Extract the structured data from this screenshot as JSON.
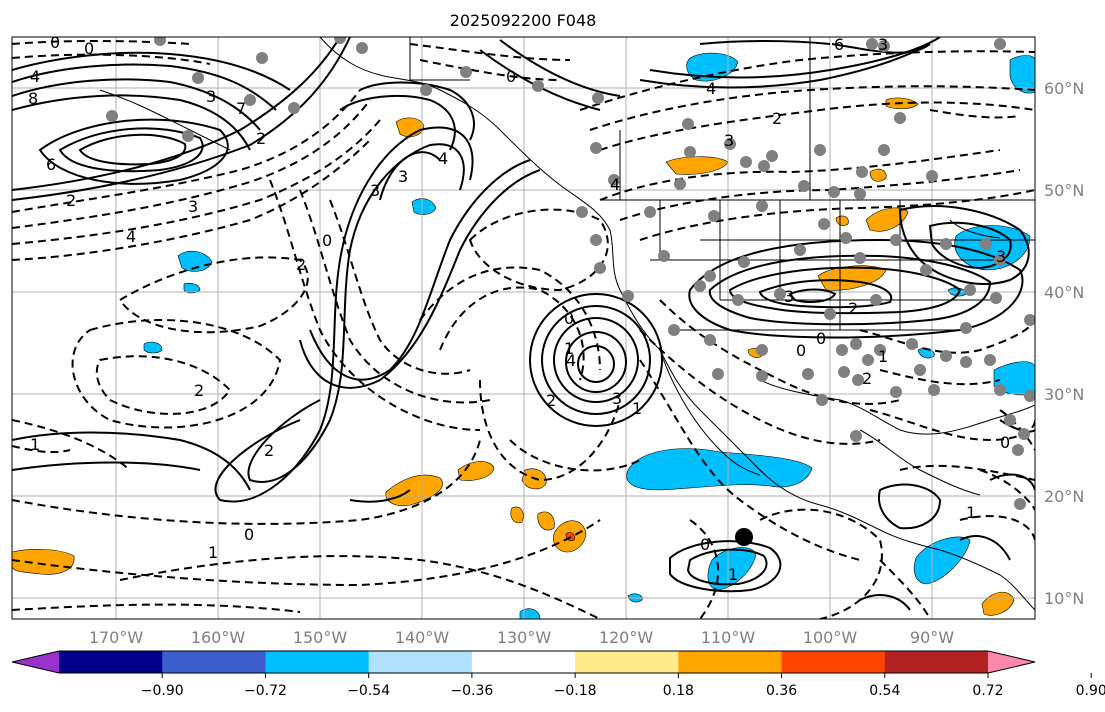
{
  "title": "2025092200 F048",
  "lat_labels": [
    "60°N",
    "50°N",
    "40°N",
    "30°N",
    "20°N",
    "10°N"
  ],
  "lon_labels": [
    "170°W",
    "160°W",
    "150°W",
    "140°W",
    "130°W",
    "120°W",
    "110°W",
    "100°W",
    "90°W"
  ],
  "colorbar": {
    "colors": [
      "#9932cc",
      "#00008b",
      "#3a5fcd",
      "#00bfff",
      "#b0e2ff",
      "#ffffff",
      "#ffec8b",
      "#ffa500",
      "#ff4500",
      "#b22222",
      "#ff88aa"
    ],
    "tick_labels": [
      "−0.90",
      "−0.72",
      "−0.54",
      "−0.36",
      "−0.18",
      "0.18",
      "0.36",
      "0.54",
      "0.72",
      "0.90"
    ]
  },
  "contour_labels": [
    "0",
    "0",
    "4",
    "8",
    "3",
    "6",
    "2",
    "2",
    "3",
    "4",
    "2",
    "7",
    "0",
    "4",
    "3",
    "4",
    "2",
    "3",
    "0",
    "2",
    "1",
    "1",
    "0",
    "2",
    "1",
    "0",
    "4",
    "1",
    "3",
    "6",
    "3",
    "2",
    "4",
    "3",
    "3",
    "2",
    "0",
    "3",
    "0",
    "2",
    "1",
    "0",
    "1",
    "0",
    "1"
  ],
  "colors": {
    "positive_fill": "#ffa500",
    "negative_fill": "#00bfff",
    "grid": "#b0b0b0",
    "land_line": "#000000"
  }
}
